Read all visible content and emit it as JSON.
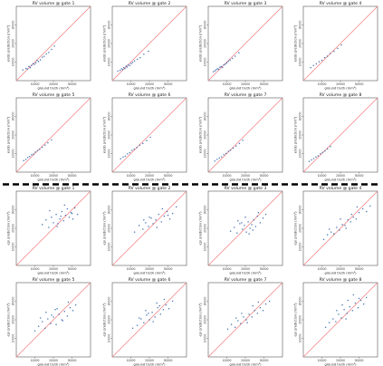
{
  "chart_data": {
    "type": "scatter",
    "x_ticks": [
      "10000",
      "20000",
      "30000"
    ],
    "y_ticks": [
      "10000",
      "20000",
      "30000"
    ],
    "xlabel": "ground truth (mm³)",
    "xlim": [
      0,
      40000
    ],
    "ylim": [
      0,
      40000
    ],
    "identity_line": true,
    "groups": [
      {
        "ylabel": "endo prediction (mm³)",
        "panels": [
          {
            "title": "RV volume @ gate 1",
            "x": [
              3500,
              5200,
              6000,
              6800,
              7500,
              8200,
              9000,
              9800,
              10500,
              11200,
              12000,
              13000,
              14000,
              15000,
              16200,
              17500,
              19000,
              20500
            ],
            "y": [
              5800,
              6500,
              6200,
              7600,
              7000,
              8200,
              9100,
              8800,
              9600,
              10800,
              10300,
              11200,
              12600,
              13100,
              14400,
              15200,
              16800,
              18600
            ]
          },
          {
            "title": "RV volume @ gate 2",
            "x": [
              3000,
              4200,
              5000,
              5600,
              6200,
              6800,
              7400,
              8000,
              8600,
              9400,
              10200,
              11000,
              12000,
              13500,
              15000,
              17000,
              19500
            ],
            "y": [
              5200,
              5600,
              6400,
              5900,
              7000,
              6500,
              7800,
              7300,
              8400,
              8100,
              9200,
              9800,
              10600,
              11500,
              12400,
              14200,
              15800
            ]
          },
          {
            "title": "RV volume @ gate 3",
            "x": [
              2800,
              3600,
              4300,
              5000,
              5600,
              6300,
              7000,
              7700,
              8400,
              9200,
              10000,
              10800,
              11800,
              13000,
              14500,
              16500
            ],
            "y": [
              4800,
              5300,
              5900,
              6400,
              6100,
              7200,
              7600,
              7100,
              8500,
              8900,
              9600,
              10400,
              11100,
              12000,
              13200,
              15000
            ]
          },
          {
            "title": "RV volume @ gate 4",
            "x": [
              4000,
              5500,
              7000,
              8500,
              10000,
              11500,
              13000,
              14500,
              16500,
              18500,
              20500
            ],
            "y": [
              7000,
              8200,
              9000,
              10200,
              11000,
              12400,
              13200,
              14600,
              15800,
              17400,
              19200
            ]
          },
          {
            "title": "RV volume @ gate 5",
            "x": [
              4000,
              5200,
              6200,
              7200,
              8200,
              9200,
              10200,
              11400,
              12600,
              14000,
              15500,
              17000,
              19000
            ],
            "y": [
              6200,
              6800,
              7900,
              8400,
              9300,
              9700,
              10800,
              11600,
              12300,
              13400,
              14600,
              15800,
              17400
            ]
          },
          {
            "title": "RV volume @ gate 6",
            "x": [
              4500,
              5800,
              7000,
              8200,
              9400,
              10600,
              11800,
              13200,
              14800,
              16500,
              18500,
              20500
            ],
            "y": [
              7200,
              8100,
              8600,
              9800,
              10500,
              11700,
              12400,
              13300,
              14600,
              15400,
              17000,
              18800
            ]
          },
          {
            "title": "RV volume @ gate 7",
            "x": [
              3500,
              4800,
              6000,
              7200,
              8400,
              9600,
              10800,
              12000,
              13400,
              15000,
              16800,
              18600
            ],
            "y": [
              6000,
              6900,
              7600,
              8300,
              9400,
              10100,
              11200,
              11800,
              13000,
              14100,
              15400,
              17200
            ]
          },
          {
            "title": "RV volume @ gate 8",
            "x": [
              3200,
              4400,
              5600,
              6800,
              8000,
              9200,
              10400,
              11600,
              13000,
              14600
            ],
            "y": [
              5800,
              6600,
              7300,
              8200,
              8800,
              9900,
              10600,
              11400,
              12500,
              13800
            ]
          }
        ]
      },
      {
        "ylabel": "epi prediction (mm³)",
        "panels": [
          {
            "title": "RV volume @ gate 1",
            "x": [
              14000,
              16000,
              17500,
              19000,
              20000,
              21500,
              22500,
              23500,
              24500,
              25500,
              26500,
              27500,
              28500,
              29500,
              30500,
              31500,
              33000,
              18000,
              22000,
              26000,
              30000,
              24000
            ],
            "y": [
              22000,
              24500,
              20500,
              26000,
              23000,
              27500,
              22500,
              25000,
              29000,
              24000,
              27000,
              30500,
              26000,
              28500,
              25000,
              31000,
              27500,
              29500,
              21000,
              32500,
              28000,
              26500
            ]
          },
          {
            "title": "RV volume @ gate 2",
            "x": [
              12000,
              14500,
              16500,
              18000,
              19500,
              21000,
              22000,
              23500,
              25000,
              26500,
              28000,
              29500,
              31000,
              32500,
              34500,
              17000,
              24000,
              27000,
              20000,
              30000
            ],
            "y": [
              18000,
              21500,
              19500,
              23000,
              21000,
              25500,
              22500,
              24500,
              27500,
              23500,
              26500,
              29000,
              25000,
              28000,
              31500,
              24500,
              20500,
              30500,
              26000,
              27000
            ]
          },
          {
            "title": "RV volume @ gate 3",
            "x": [
              12000,
              14000,
              15500,
              17000,
              18500,
              19500,
              20500,
              21500,
              22500,
              23500,
              24500,
              25500,
              26500,
              28000,
              29500,
              31000,
              16000,
              20000,
              24000,
              27000,
              18000,
              22000
            ],
            "y": [
              18500,
              20500,
              17500,
              22500,
              19500,
              21500,
              18000,
              23500,
              20000,
              22000,
              24500,
              21000,
              26500,
              23000,
              25500,
              27500,
              24000,
              26000,
              19000,
              28500,
              23000,
              17000
            ]
          },
          {
            "title": "RV volume @ gate 4",
            "x": [
              11000,
              13000,
              15000,
              16500,
              18000,
              19500,
              21000,
              22500,
              24000,
              25500,
              27000,
              28500,
              30000,
              32000,
              34000,
              36000,
              14000,
              20000,
              26000,
              23000,
              29000
            ],
            "y": [
              14000,
              16500,
              18000,
              17000,
              20500,
              19000,
              22000,
              21500,
              24500,
              23500,
              26000,
              25000,
              28500,
              30500,
              29000,
              32000,
              19500,
              25000,
              27500,
              20000,
              31500
            ]
          },
          {
            "title": "RV volume @ gate 5",
            "x": [
              10000,
              12000,
              14000,
              15500,
              17000,
              18500,
              20000,
              21500,
              23000,
              24500,
              26000,
              27500,
              29000,
              30500,
              32000,
              13000,
              16000,
              19000,
              22000,
              25000,
              28000,
              21000
            ],
            "y": [
              14000,
              16500,
              19000,
              15500,
              20500,
              18000,
              21500,
              17500,
              23000,
              20000,
              24500,
              22000,
              26500,
              25000,
              28000,
              21000,
              24000,
              22500,
              26000,
              19500,
              29500,
              25500
            ]
          },
          {
            "title": "RV volume @ gate 6",
            "x": [
              11000,
              13500,
              15500,
              17000,
              18500,
              20000,
              21500,
              23000,
              24500,
              26000,
              27500,
              29000,
              30500,
              32500,
              14500,
              18000,
              22000,
              25500,
              28000,
              19500,
              24000
            ],
            "y": [
              15500,
              17000,
              20500,
              18500,
              22500,
              20000,
              24000,
              21500,
              26500,
              23000,
              25500,
              28000,
              26000,
              30000,
              21000,
              25000,
              19000,
              27500,
              31000,
              23500,
              29000
            ]
          },
          {
            "title": "RV volume @ gate 7",
            "x": [
              10500,
              12500,
              14500,
              16000,
              17500,
              19000,
              20500,
              22000,
              23500,
              25000,
              26500,
              28000,
              29500,
              31000,
              33000,
              15000,
              18000,
              21000,
              24000,
              27000
            ],
            "y": [
              15000,
              17500,
              16000,
              19500,
              18000,
              21500,
              20000,
              23000,
              21500,
              25000,
              23500,
              26500,
              25000,
              28500,
              30000,
              21000,
              23500,
              18500,
              27500,
              29500
            ]
          },
          {
            "title": "RV volume @ gate 8",
            "x": [
              12000,
              14000,
              16000,
              17500,
              19000,
              20500,
              22000,
              23500,
              25000,
              26500,
              28000,
              29500,
              31000,
              32500,
              34000,
              18000,
              21000,
              24000,
              27000,
              30000,
              23000
            ],
            "y": [
              16000,
              18500,
              20500,
              19000,
              23000,
              21000,
              25500,
              23500,
              27000,
              25000,
              29000,
              26500,
              30500,
              28500,
              32000,
              25000,
              28000,
              30500,
              33500,
              31500,
              20500
            ]
          }
        ]
      }
    ]
  }
}
